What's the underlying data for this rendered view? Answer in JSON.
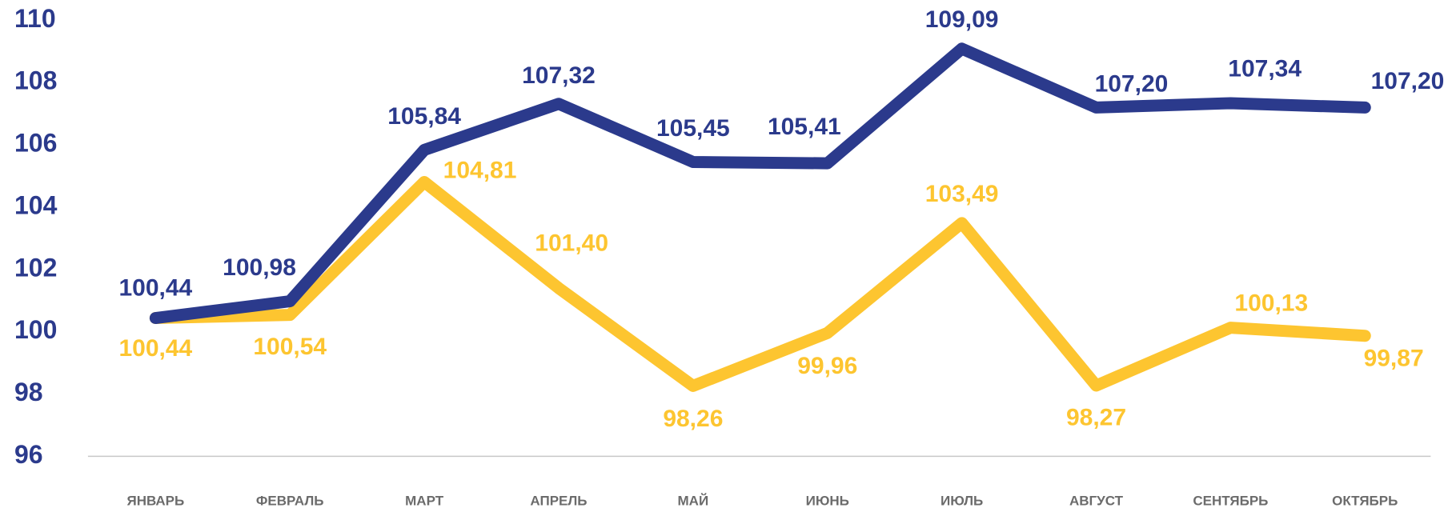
{
  "chart_data": {
    "type": "line",
    "categories": [
      "ЯНВАРЬ",
      "ФЕВРАЛЬ",
      "МАРТ",
      "АПРЕЛЬ",
      "МАЙ",
      "ИЮНЬ",
      "ИЮЛЬ",
      "АВГУСТ",
      "СЕНТЯБРЬ",
      "ОКТЯБРЬ"
    ],
    "series": [
      {
        "color": "#2b3a8c",
        "values": [
          100.44,
          100.98,
          105.84,
          107.32,
          105.45,
          105.41,
          109.09,
          107.2,
          107.34,
          107.2
        ],
        "value_labels": [
          "100,44",
          "100,98",
          "105,84",
          "107,32",
          "105,45",
          "105,41",
          "109,09",
          "107,20",
          "107,34",
          "107,20"
        ]
      },
      {
        "color": "#fdc530",
        "values": [
          100.44,
          100.54,
          104.81,
          101.4,
          98.26,
          99.96,
          103.49,
          98.27,
          100.13,
          99.87
        ],
        "value_labels": [
          "100,44",
          "100,54",
          "104,81",
          "101,40",
          "98,26",
          "99,96",
          "103,49",
          "98,27",
          "100,13",
          "99,87"
        ]
      }
    ],
    "ylim": [
      96,
      110
    ],
    "yticks": [
      96,
      98,
      100,
      102,
      104,
      106,
      108,
      110
    ],
    "grid": false
  }
}
